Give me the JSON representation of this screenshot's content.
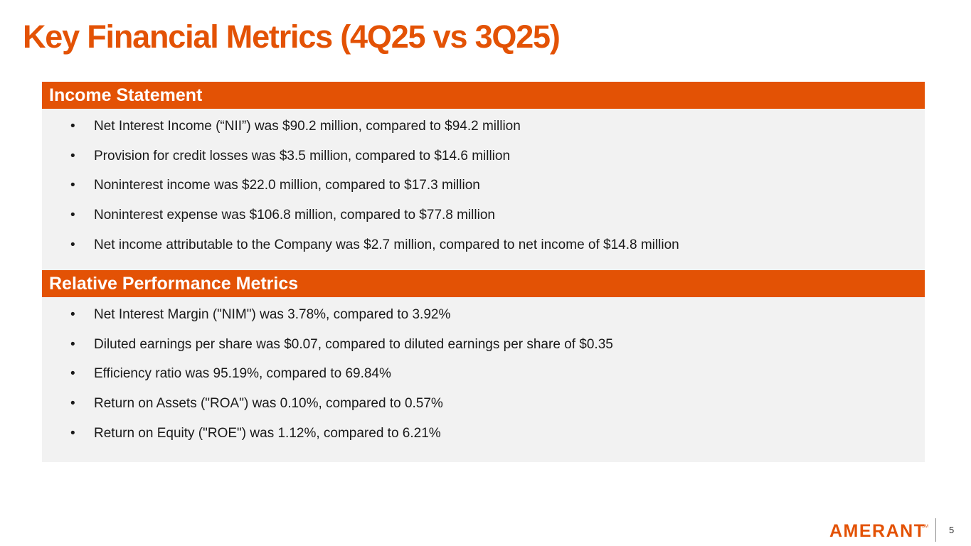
{
  "slide": {
    "title": "Key Financial Metrics (4Q25 vs 3Q25)",
    "page_number": "5",
    "brand": {
      "logo_text": "AMERANT",
      "trademark": "SM",
      "color": "#e35205"
    }
  },
  "income_statement": {
    "header": "Income Statement",
    "items": [
      "Net Interest Income (“NII”) was $90.2 million, compared to $94.2 million",
      "Provision for credit losses was $3.5 million,  compared to $14.6 million",
      "Noninterest income was $22.0 million, compared to $17.3 million",
      "Noninterest expense was $106.8 million, compared to $77.8 million",
      "Net income attributable to the Company  was $2.7 million, compared to net income of $14.8 million"
    ]
  },
  "relative_performance": {
    "header": "Relative Performance Metrics",
    "items": [
      "Net Interest Margin (\"NIM\") was 3.78%,  compared to 3.92%",
      "Diluted earnings per share was $0.07, compared to diluted earnings per share of $0.35",
      "Efficiency ratio was 95.19%, compared to 69.84%",
      "Return on Assets (\"ROA\") was  0.10%, compared to  0.57%",
      "Return on Equity (\"ROE\") was  1.12%, compared to 6.21%"
    ]
  }
}
